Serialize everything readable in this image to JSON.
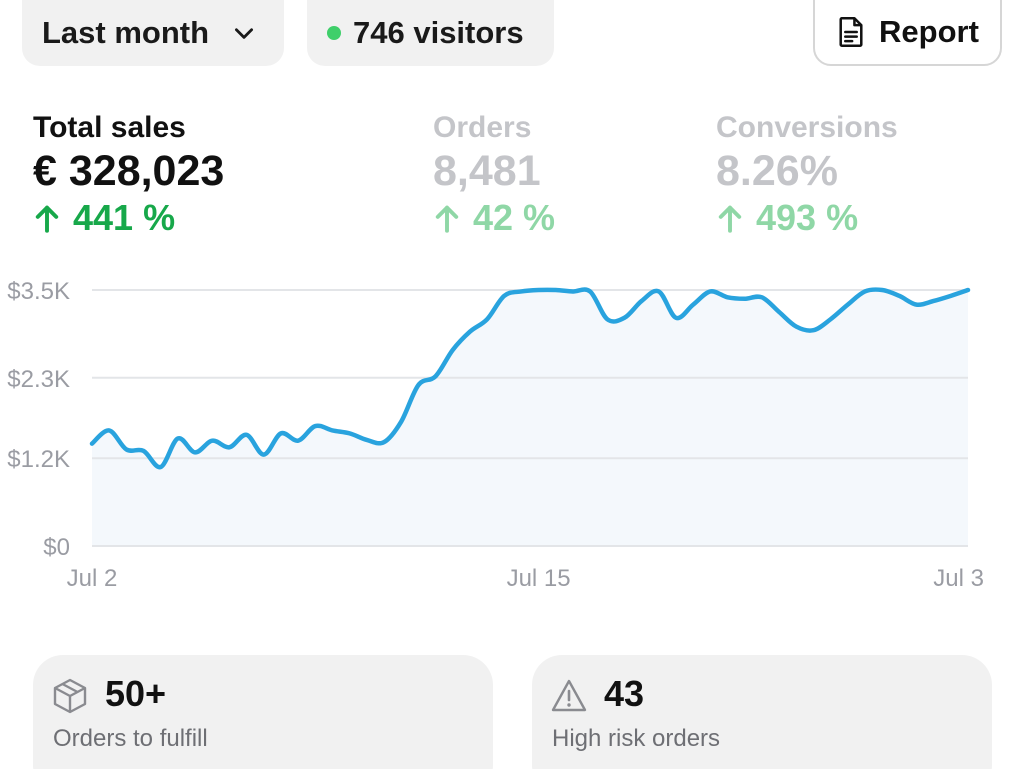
{
  "header": {
    "range_label": "Last month",
    "visitors_label": "746 visitors",
    "report_label": "Report"
  },
  "metrics": {
    "sales": {
      "label": "Total sales",
      "value": "€ 328,023",
      "change": "441 %"
    },
    "orders": {
      "label": "Orders",
      "value": "8,481",
      "change": "42 %"
    },
    "conversions": {
      "label": "Conversions",
      "value": "8.26%",
      "change": "493 %"
    }
  },
  "colors": {
    "line": "#29a3de",
    "area": "#f4f8fc",
    "grid": "#e3e5e8",
    "positive": "#17a84a",
    "visitor_dot": "#3fcf6a"
  },
  "chart_data": {
    "type": "area",
    "title": "Total sales",
    "xlabel": "",
    "ylabel": "",
    "y_tick_labels": [
      "$0",
      "$1.2K",
      "$2.3K",
      "$3.5K"
    ],
    "y_ticks": [
      0,
      1200,
      2300,
      3500
    ],
    "ylim": [
      0,
      3500
    ],
    "x_tick_labels": [
      "Jul 2",
      "Jul 15",
      "Jul 3"
    ],
    "x_tick_days": [
      2,
      15,
      27.5
    ],
    "xlim": [
      2,
      27.5
    ],
    "series": [
      {
        "name": "Sales",
        "x": [
          2,
          2.5,
          3,
          3.5,
          4,
          4.5,
          5,
          5.5,
          6,
          6.5,
          7,
          7.5,
          8,
          8.5,
          9,
          9.5,
          10,
          10.5,
          11,
          11.5,
          12,
          12.5,
          13,
          13.5,
          14,
          14.5,
          15,
          15.5,
          16,
          16.5,
          17,
          17.5,
          18,
          18.5,
          19,
          19.5,
          20,
          20.5,
          21,
          21.5,
          22,
          22.5,
          23,
          23.5,
          24,
          24.5,
          25,
          25.5,
          26,
          26.5,
          27,
          27.5
        ],
        "values": [
          1400,
          1580,
          1320,
          1300,
          1080,
          1470,
          1280,
          1440,
          1350,
          1520,
          1250,
          1540,
          1440,
          1640,
          1580,
          1540,
          1450,
          1420,
          1700,
          2200,
          2320,
          2680,
          2930,
          3100,
          3420,
          3480,
          3500,
          3500,
          3480,
          3480,
          3100,
          3120,
          3350,
          3480,
          3120,
          3300,
          3480,
          3400,
          3380,
          3400,
          3200,
          3000,
          2950,
          3100,
          3300,
          3480,
          3500,
          3420,
          3300,
          3350,
          3420,
          3500
        ]
      }
    ]
  },
  "cards": {
    "fulfill": {
      "count": "50+",
      "label": "Orders to fulfill"
    },
    "risk": {
      "count": "43",
      "label": "High risk orders"
    }
  }
}
